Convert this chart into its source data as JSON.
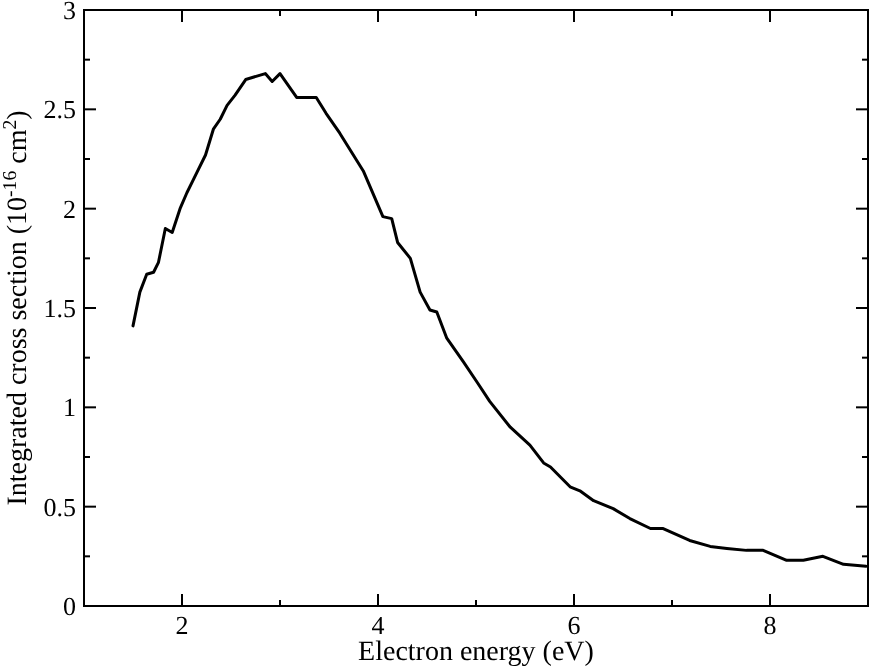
{
  "chart_data": {
    "type": "line",
    "xlabel": "Electron energy (eV)",
    "ylabel": "Integrated cross section (10$^{-16}$ cm$^{2}$)",
    "xlim": [
      1,
      9
    ],
    "ylim": [
      0,
      3
    ],
    "xticks": [
      2,
      {
        "value": 3,
        "label": null
      },
      4,
      {
        "value": 5,
        "label": null
      },
      6,
      {
        "value": 7,
        "label": null
      },
      8
    ],
    "yticks": [
      0,
      {
        "value": 0.25,
        "label": null
      },
      0.5,
      {
        "value": 0.75,
        "label": null
      },
      1,
      {
        "value": 1.25,
        "label": null
      },
      1.5,
      {
        "value": 1.75,
        "label": null
      },
      2,
      {
        "value": 2.25,
        "label": null
      },
      2.5,
      {
        "value": 2.75,
        "label": null
      },
      3
    ],
    "grid": false,
    "marker": "none",
    "line_style": "solid",
    "series": [
      {
        "color": "#000000",
        "x": [
          1.5,
          1.57,
          1.64,
          1.71,
          1.76,
          1.83,
          1.9,
          1.98,
          2.05,
          2.15,
          2.24,
          2.32,
          2.39,
          2.46,
          2.54,
          2.65,
          2.85,
          2.92,
          3.0,
          3.17,
          3.37,
          3.47,
          3.61,
          3.85,
          4.05,
          4.14,
          4.2,
          4.33,
          4.43,
          4.53,
          4.6,
          4.7,
          4.87,
          5.02,
          5.14,
          5.35,
          5.55,
          5.69,
          5.76,
          5.96,
          6.06,
          6.2,
          6.4,
          6.57,
          6.78,
          6.91,
          7.18,
          7.39,
          7.56,
          7.76,
          7.93,
          8.17,
          8.34,
          8.54,
          8.75,
          8.98
        ],
        "values": [
          1.41,
          1.58,
          1.67,
          1.68,
          1.73,
          1.9,
          1.88,
          2.0,
          2.08,
          2.18,
          2.27,
          2.4,
          2.45,
          2.52,
          2.57,
          2.65,
          2.68,
          2.64,
          2.68,
          2.56,
          2.56,
          2.48,
          2.38,
          2.19,
          1.96,
          1.95,
          1.83,
          1.75,
          1.58,
          1.49,
          1.48,
          1.35,
          1.23,
          1.12,
          1.03,
          0.9,
          0.81,
          0.72,
          0.7,
          0.6,
          0.58,
          0.53,
          0.49,
          0.44,
          0.39,
          0.39,
          0.33,
          0.3,
          0.29,
          0.28,
          0.28,
          0.23,
          0.23,
          0.25,
          0.21,
          0.2
        ]
      }
    ]
  }
}
